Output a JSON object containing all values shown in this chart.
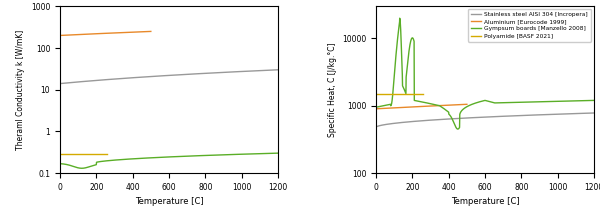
{
  "colors": {
    "steel": "#999999",
    "aluminium": "#E8892A",
    "gypsum": "#5AAE27",
    "polyamide": "#D4AA00"
  },
  "legend_labels": [
    "Stainless steel AISI 304 [Incropera]",
    "Aluminium [Eurocode 1999]",
    "Gympsum boards [Manzello 2008]",
    "Polyamide [BASF 2021]"
  ],
  "left_ylabel": "Theraml Conductivity k [W/mK]",
  "right_ylabel": "Specific Heat, C [J/kg.°C]",
  "xlabel": "Temperature [C]",
  "xlim": [
    0,
    1200
  ],
  "left_ylim": [
    0.1,
    1000
  ],
  "right_ylim": [
    100,
    30000
  ]
}
